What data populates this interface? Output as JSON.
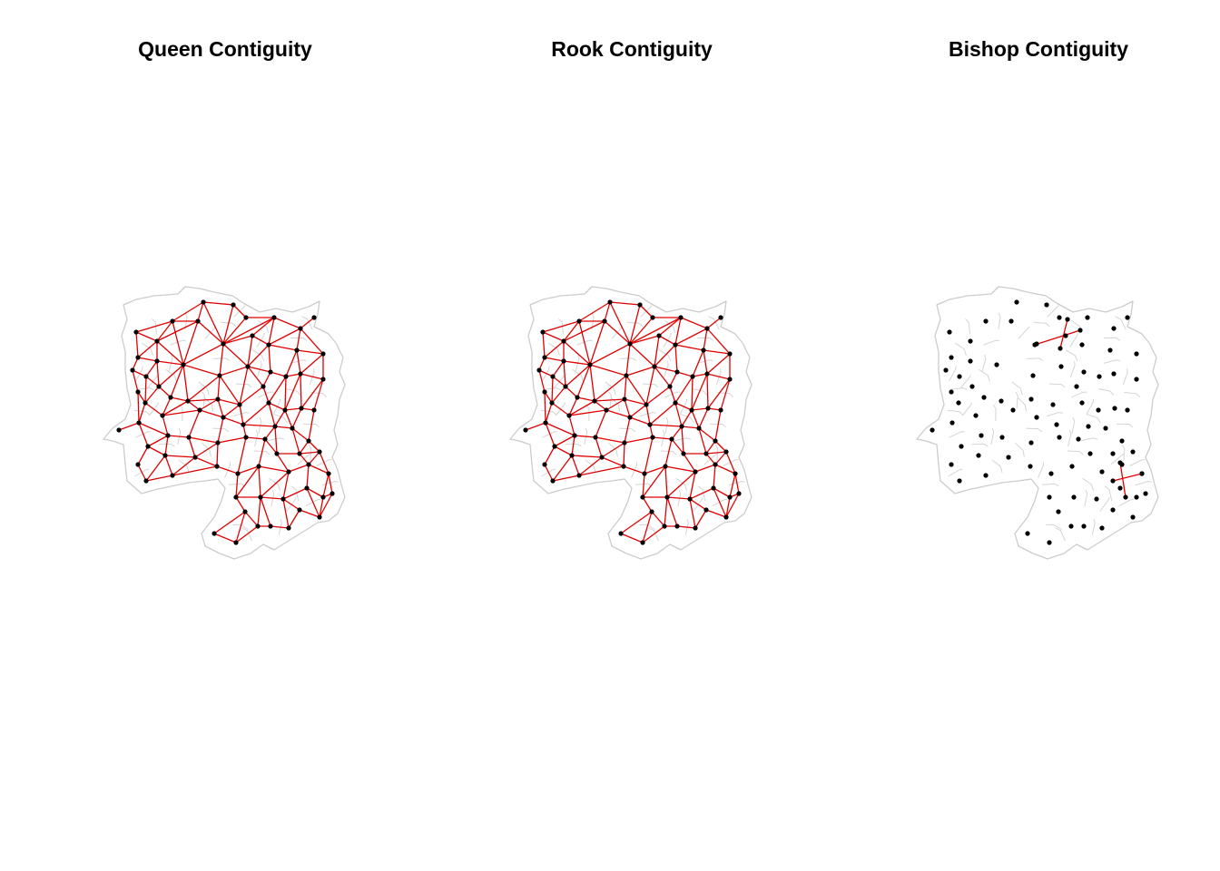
{
  "figure": {
    "panels": [
      {
        "title": "Queen Contiguity",
        "type": "queen"
      },
      {
        "title": "Rook Contiguity",
        "type": "rook"
      },
      {
        "title": "Bishop Contiguity",
        "type": "bishop"
      }
    ]
  },
  "colors": {
    "background": "#ffffff",
    "boundaries": "#cccccc",
    "links": "#e00000",
    "centroids": "#000000",
    "title": "#000000"
  }
}
